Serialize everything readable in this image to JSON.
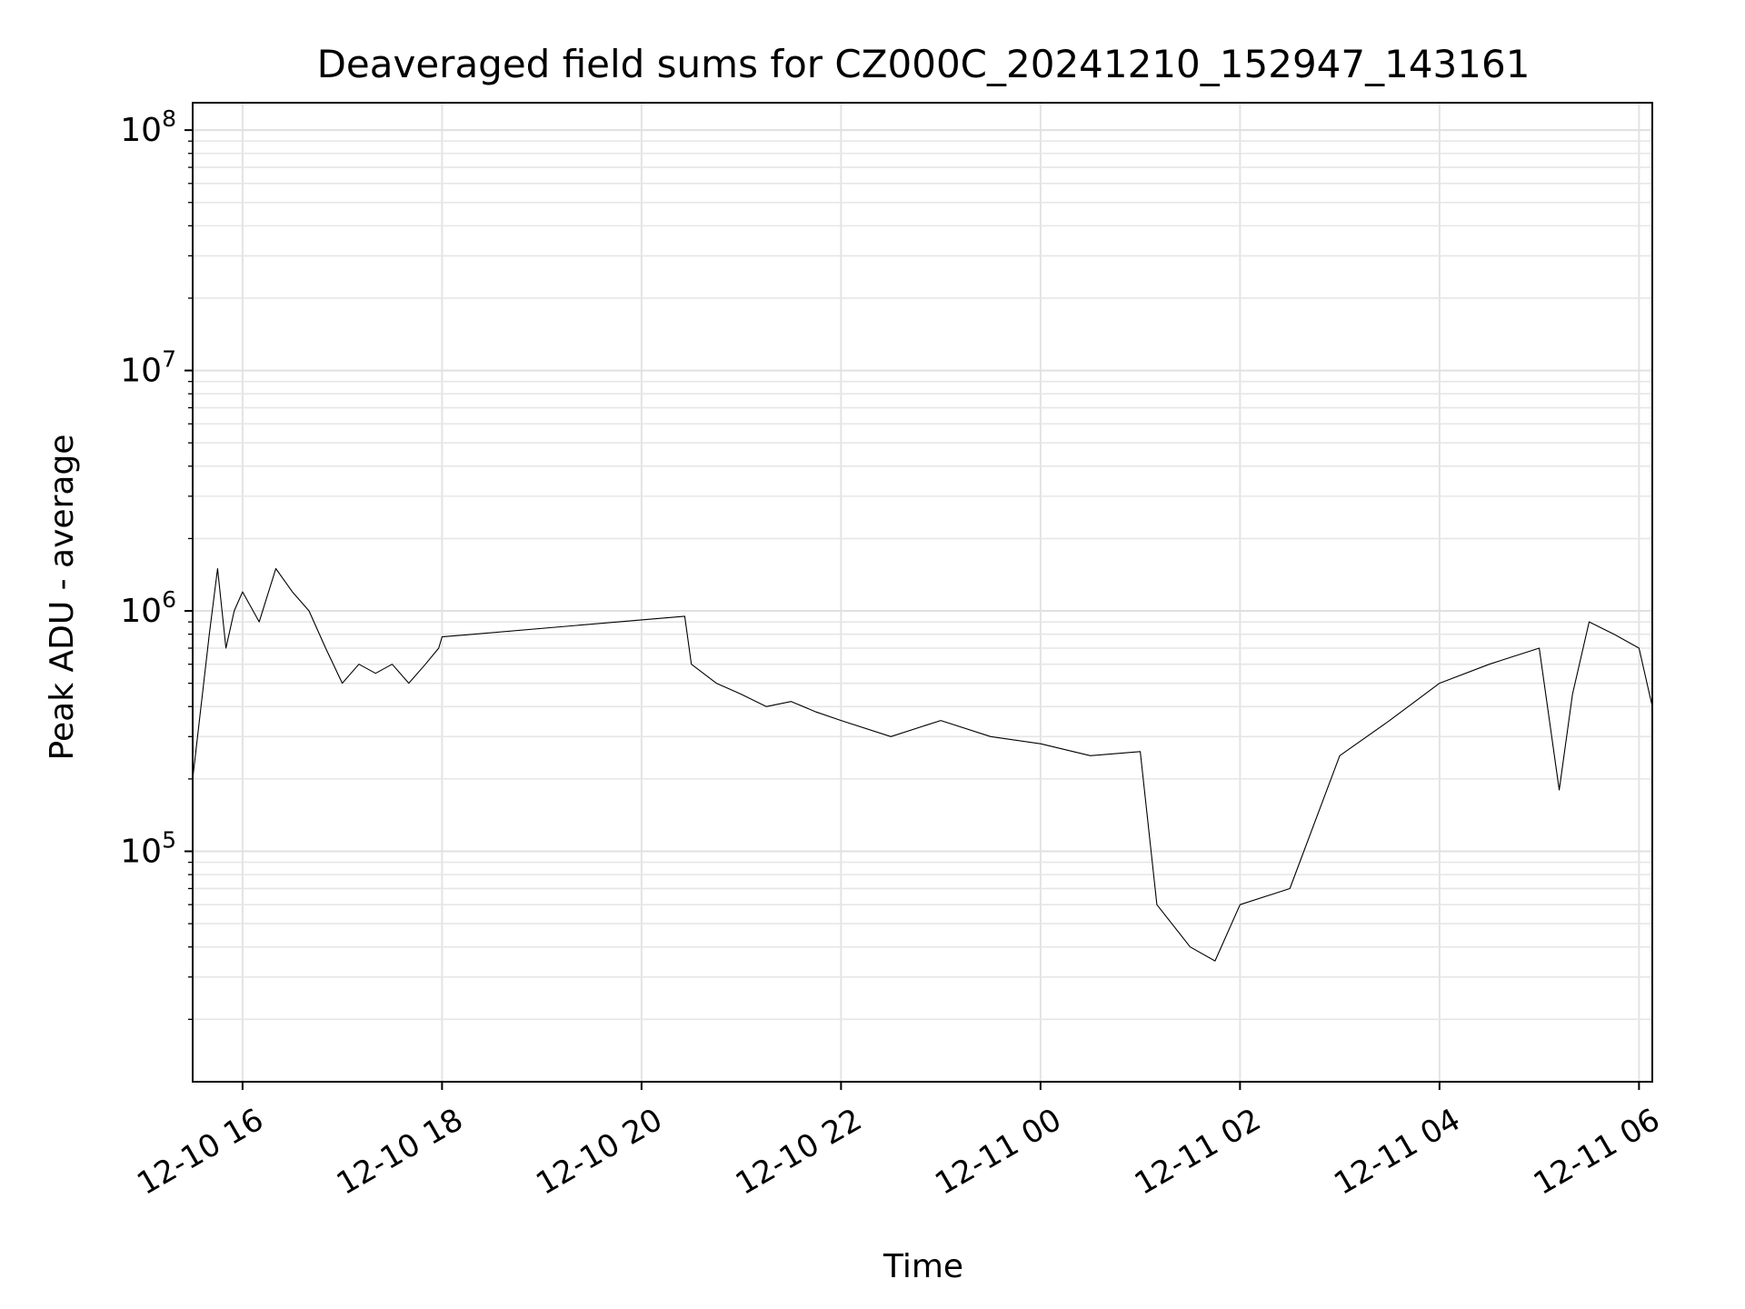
{
  "chart_data": {
    "type": "line",
    "title": "Deaveraged field sums for CZ000C_20241210_152947_143161",
    "xlabel": "Time",
    "ylabel": "Peak ADU - average",
    "yscale": "log",
    "ylim": [
      11000,
      130000000
    ],
    "xlim": [
      "2024-12-10 15:30",
      "2024-12-11 06:08"
    ],
    "x_ticks": [
      "12-10 16",
      "12-10 18",
      "12-10 20",
      "12-10 22",
      "12-11 00",
      "12-11 02",
      "12-11 04",
      "12-11 06"
    ],
    "x_tick_values": [
      "2024-12-10 16:00",
      "2024-12-10 18:00",
      "2024-12-10 20:00",
      "2024-12-10 22:00",
      "2024-12-11 00:00",
      "2024-12-11 02:00",
      "2024-12-11 04:00",
      "2024-12-11 06:00"
    ],
    "y_ticks": [
      "10^5",
      "10^6",
      "10^7",
      "10^8"
    ],
    "y_tick_values": [
      100000,
      1000000,
      10000000,
      100000000
    ],
    "grid": true,
    "line_color": "#000000",
    "series": [
      {
        "x": [
          "2024-12-10 15:30",
          "2024-12-10 15:40",
          "2024-12-10 15:45",
          "2024-12-10 15:50",
          "2024-12-10 15:55",
          "2024-12-10 16:00",
          "2024-12-10 16:10",
          "2024-12-10 16:20",
          "2024-12-10 16:30",
          "2024-12-10 16:40",
          "2024-12-10 16:50",
          "2024-12-10 17:00",
          "2024-12-10 17:10",
          "2024-12-10 17:20",
          "2024-12-10 17:30",
          "2024-12-10 17:40",
          "2024-12-10 17:50",
          "2024-12-10 17:58",
          "2024-12-10 18:00",
          "2024-12-10 20:26",
          "2024-12-10 20:30",
          "2024-12-10 20:45",
          "2024-12-10 21:00",
          "2024-12-10 21:15",
          "2024-12-10 21:30",
          "2024-12-10 21:45",
          "2024-12-10 22:00",
          "2024-12-10 22:30",
          "2024-12-10 23:00",
          "2024-12-10 23:30",
          "2024-12-11 00:00",
          "2024-12-11 00:30",
          "2024-12-11 01:00",
          "2024-12-11 01:10",
          "2024-12-11 01:30",
          "2024-12-11 01:45",
          "2024-12-11 02:00",
          "2024-12-11 02:30",
          "2024-12-11 03:00",
          "2024-12-11 03:30",
          "2024-12-11 04:00",
          "2024-12-11 04:30",
          "2024-12-11 05:00",
          "2024-12-11 05:12",
          "2024-12-11 05:20",
          "2024-12-11 05:30",
          "2024-12-11 05:45",
          "2024-12-11 06:00",
          "2024-12-11 06:08"
        ],
        "values": [
          200000,
          800000,
          1500000,
          700000,
          1000000,
          1200000,
          900000,
          1500000,
          1200000,
          1000000,
          700000,
          500000,
          600000,
          550000,
          600000,
          500000,
          600000,
          700000,
          780000,
          950000,
          600000,
          500000,
          450000,
          400000,
          420000,
          380000,
          350000,
          300000,
          350000,
          300000,
          280000,
          250000,
          260000,
          60000,
          40000,
          35000,
          60000,
          70000,
          250000,
          350000,
          500000,
          600000,
          700000,
          180000,
          450000,
          900000,
          800000,
          700000,
          400000
        ]
      }
    ]
  }
}
